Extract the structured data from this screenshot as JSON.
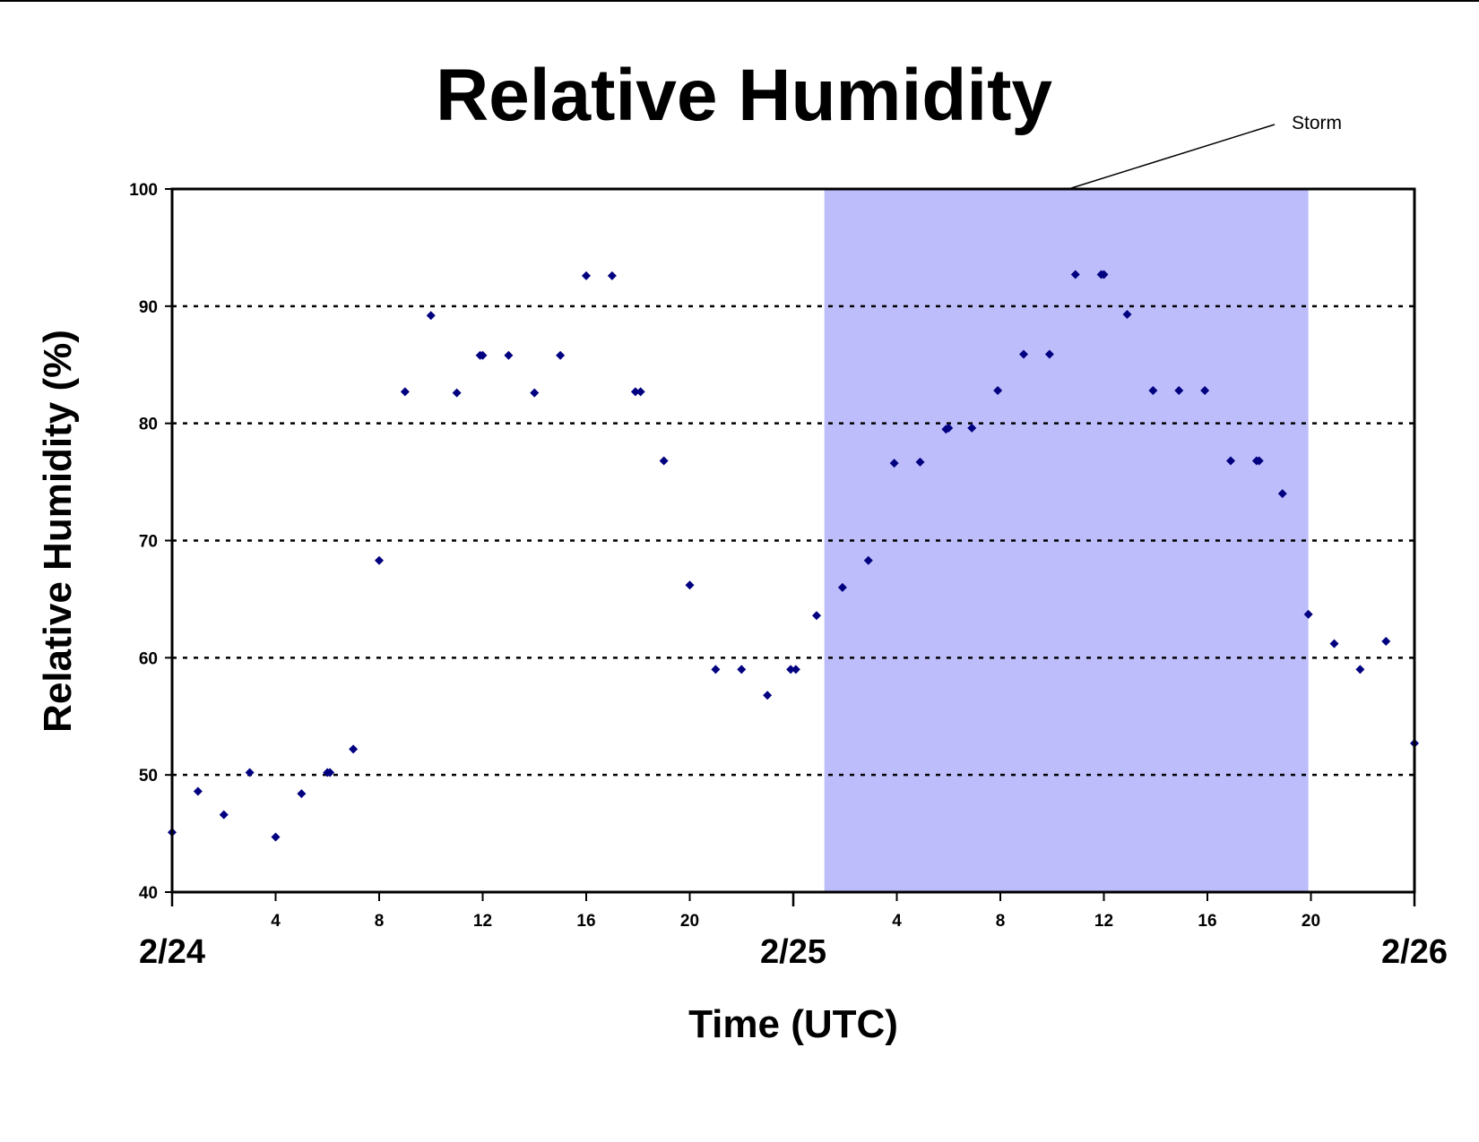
{
  "chart_data": {
    "type": "scatter",
    "title": "Relative Humidity",
    "xlabel": "Time (UTC)",
    "ylabel": "Relative Humidity (%)",
    "ylim": [
      40,
      100
    ],
    "yticks": [
      40,
      50,
      60,
      70,
      80,
      90,
      100
    ],
    "xlim_hours": [
      0,
      48
    ],
    "x_tick_labels": [
      {
        "hour": 4,
        "label": "4"
      },
      {
        "hour": 8,
        "label": "8"
      },
      {
        "hour": 12,
        "label": "12"
      },
      {
        "hour": 16,
        "label": "16"
      },
      {
        "hour": 20,
        "label": "20"
      },
      {
        "hour": 28,
        "label": "4"
      },
      {
        "hour": 32,
        "label": "8"
      },
      {
        "hour": 36,
        "label": "12"
      },
      {
        "hour": 40,
        "label": "16"
      },
      {
        "hour": 44,
        "label": "20"
      }
    ],
    "date_labels": [
      {
        "hour": 0,
        "label": "2/24"
      },
      {
        "hour": 24,
        "label": "2/25"
      },
      {
        "hour": 48,
        "label": "2/26"
      }
    ],
    "grid": "horizontal dotted",
    "marker_color": "#000080",
    "shade_color": "#bdbdfb",
    "storm_window_hours": [
      25.2,
      43.9
    ],
    "annotation": "Storm",
    "points": [
      {
        "x": 0,
        "y": 45.1
      },
      {
        "x": 1,
        "y": 48.6
      },
      {
        "x": 2,
        "y": 46.6
      },
      {
        "x": 3,
        "y": 50.2
      },
      {
        "x": 4,
        "y": 44.7
      },
      {
        "x": 5,
        "y": 48.4
      },
      {
        "x": 6,
        "y": 50.2
      },
      {
        "x": 6.1,
        "y": 50.2
      },
      {
        "x": 7,
        "y": 52.2
      },
      {
        "x": 8,
        "y": 68.3
      },
      {
        "x": 9,
        "y": 82.7
      },
      {
        "x": 10,
        "y": 89.2
      },
      {
        "x": 11,
        "y": 82.6
      },
      {
        "x": 11.9,
        "y": 85.8
      },
      {
        "x": 12,
        "y": 85.8
      },
      {
        "x": 13,
        "y": 85.8
      },
      {
        "x": 14,
        "y": 82.6
      },
      {
        "x": 15,
        "y": 85.8
      },
      {
        "x": 16,
        "y": 92.6
      },
      {
        "x": 17,
        "y": 92.6
      },
      {
        "x": 17.9,
        "y": 82.7
      },
      {
        "x": 18.1,
        "y": 82.7
      },
      {
        "x": 19,
        "y": 76.8
      },
      {
        "x": 20,
        "y": 66.2
      },
      {
        "x": 21,
        "y": 59.0
      },
      {
        "x": 22,
        "y": 59.0
      },
      {
        "x": 23,
        "y": 56.8
      },
      {
        "x": 23.9,
        "y": 59.0
      },
      {
        "x": 24.1,
        "y": 59.0
      },
      {
        "x": 24.9,
        "y": 63.6
      },
      {
        "x": 25.9,
        "y": 66.0
      },
      {
        "x": 26.9,
        "y": 68.3
      },
      {
        "x": 27.9,
        "y": 76.6
      },
      {
        "x": 28.9,
        "y": 76.7
      },
      {
        "x": 29.9,
        "y": 79.5
      },
      {
        "x": 30,
        "y": 79.6
      },
      {
        "x": 30.9,
        "y": 79.6
      },
      {
        "x": 31.9,
        "y": 82.8
      },
      {
        "x": 32.9,
        "y": 85.9
      },
      {
        "x": 33.9,
        "y": 85.9
      },
      {
        "x": 34.9,
        "y": 92.7
      },
      {
        "x": 35.9,
        "y": 92.7
      },
      {
        "x": 36,
        "y": 92.7
      },
      {
        "x": 36.9,
        "y": 89.3
      },
      {
        "x": 37.9,
        "y": 82.8
      },
      {
        "x": 38.9,
        "y": 82.8
      },
      {
        "x": 39.9,
        "y": 82.8
      },
      {
        "x": 40.9,
        "y": 76.8
      },
      {
        "x": 41.9,
        "y": 76.8
      },
      {
        "x": 42,
        "y": 76.8
      },
      {
        "x": 42.9,
        "y": 74.0
      },
      {
        "x": 43.9,
        "y": 63.7
      },
      {
        "x": 44.9,
        "y": 61.2
      },
      {
        "x": 45.9,
        "y": 59.0
      },
      {
        "x": 46.9,
        "y": 61.4
      },
      {
        "x": 48,
        "y": 52.7
      }
    ]
  }
}
